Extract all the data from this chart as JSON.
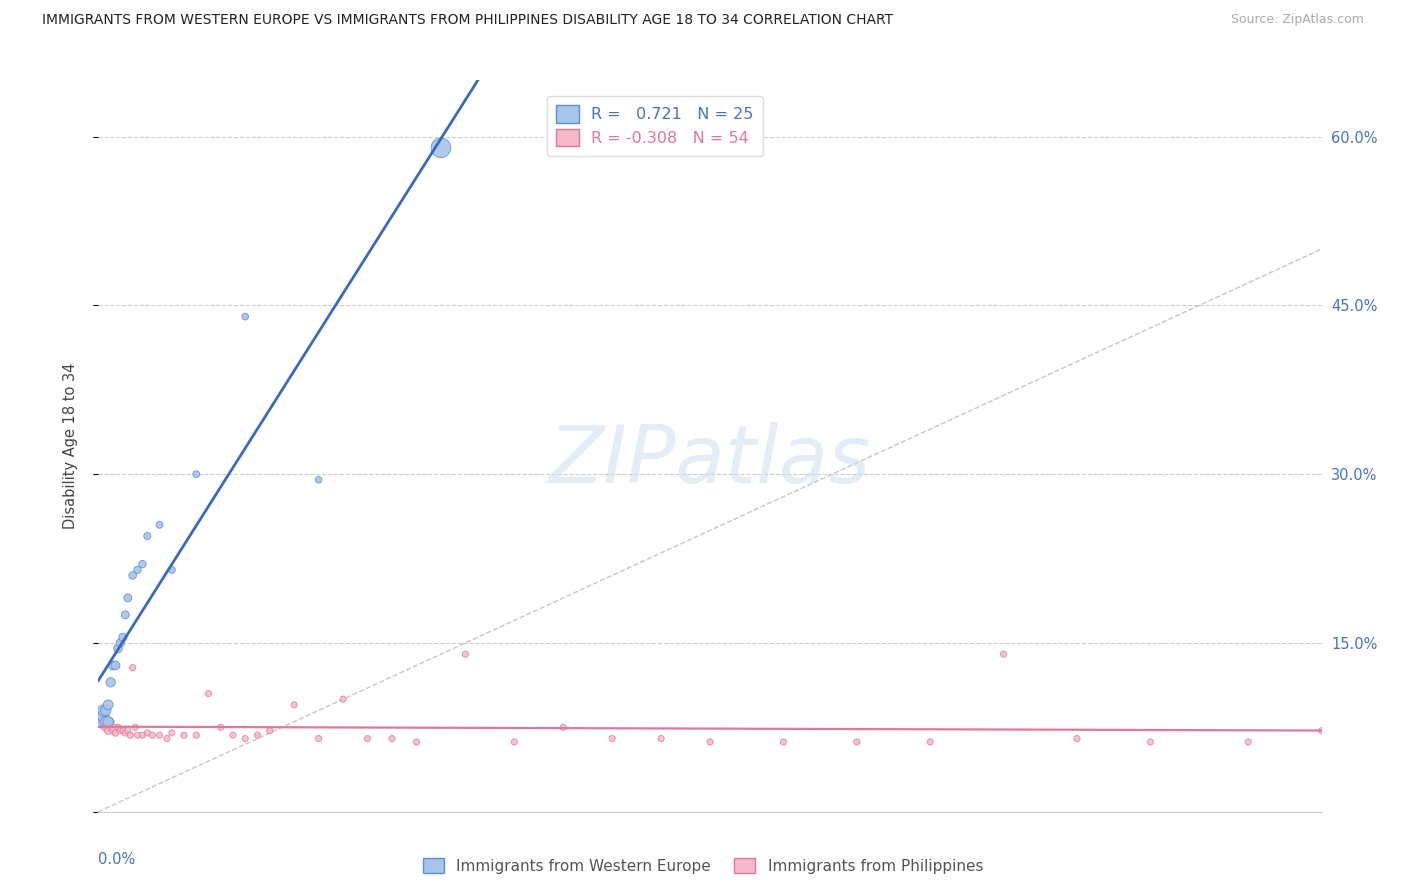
{
  "title": "IMMIGRANTS FROM WESTERN EUROPE VS IMMIGRANTS FROM PHILIPPINES DISABILITY AGE 18 TO 34 CORRELATION CHART",
  "source": "Source: ZipAtlas.com",
  "ylabel": "Disability Age 18 to 34",
  "yticks": [
    0.0,
    0.15,
    0.3,
    0.45,
    0.6
  ],
  "ytick_labels": [
    "",
    "15.0%",
    "30.0%",
    "45.0%",
    "60.0%"
  ],
  "xlim": [
    0.0,
    0.5
  ],
  "ylim": [
    0.0,
    0.65
  ],
  "r_blue": 0.721,
  "n_blue": 25,
  "r_pink": -0.308,
  "n_pink": 54,
  "color_blue_fill": "#a8c4e8",
  "color_blue_edge": "#5b8fd4",
  "color_pink_fill": "#f5b8c8",
  "color_pink_edge": "#e07898",
  "color_blue_line": "#3a6abf",
  "color_pink_line": "#e07898",
  "color_diag": "#b0b0b0",
  "watermark_text": "ZIPatlas",
  "legend_label_blue": "Immigrants from Western Europe",
  "legend_label_pink": "Immigrants from Philippines",
  "blue_x": [
    0.001,
    0.002,
    0.002,
    0.003,
    0.003,
    0.004,
    0.004,
    0.005,
    0.006,
    0.007,
    0.008,
    0.009,
    0.01,
    0.011,
    0.012,
    0.014,
    0.016,
    0.018,
    0.02,
    0.025,
    0.03,
    0.04,
    0.06,
    0.09,
    0.14
  ],
  "blue_y": [
    0.08,
    0.085,
    0.09,
    0.08,
    0.09,
    0.08,
    0.095,
    0.115,
    0.13,
    0.13,
    0.145,
    0.15,
    0.155,
    0.175,
    0.19,
    0.21,
    0.215,
    0.22,
    0.245,
    0.255,
    0.215,
    0.3,
    0.44,
    0.295,
    0.59
  ],
  "blue_sizes": [
    80,
    70,
    65,
    60,
    55,
    55,
    50,
    45,
    42,
    40,
    38,
    36,
    35,
    33,
    32,
    30,
    28,
    28,
    26,
    25,
    25,
    24,
    23,
    22,
    200
  ],
  "pink_x": [
    0.001,
    0.002,
    0.003,
    0.003,
    0.004,
    0.004,
    0.005,
    0.005,
    0.006,
    0.006,
    0.007,
    0.008,
    0.009,
    0.01,
    0.011,
    0.012,
    0.013,
    0.014,
    0.015,
    0.016,
    0.018,
    0.02,
    0.022,
    0.025,
    0.028,
    0.03,
    0.035,
    0.04,
    0.045,
    0.05,
    0.055,
    0.06,
    0.065,
    0.07,
    0.08,
    0.09,
    0.1,
    0.11,
    0.12,
    0.13,
    0.15,
    0.17,
    0.19,
    0.21,
    0.23,
    0.25,
    0.28,
    0.31,
    0.34,
    0.37,
    0.4,
    0.43,
    0.47,
    0.5
  ],
  "pink_y": [
    0.082,
    0.078,
    0.08,
    0.075,
    0.078,
    0.072,
    0.075,
    0.08,
    0.075,
    0.072,
    0.07,
    0.075,
    0.072,
    0.072,
    0.07,
    0.072,
    0.068,
    0.128,
    0.075,
    0.068,
    0.068,
    0.07,
    0.068,
    0.068,
    0.065,
    0.07,
    0.068,
    0.068,
    0.105,
    0.075,
    0.068,
    0.065,
    0.068,
    0.072,
    0.095,
    0.065,
    0.1,
    0.065,
    0.065,
    0.062,
    0.14,
    0.062,
    0.075,
    0.065,
    0.065,
    0.062,
    0.062,
    0.062,
    0.062,
    0.14,
    0.065,
    0.062,
    0.062,
    0.072
  ],
  "pink_sizes": [
    55,
    45,
    38,
    35,
    32,
    30,
    28,
    26,
    25,
    23,
    22,
    21,
    20,
    20,
    20,
    20,
    20,
    20,
    20,
    20,
    20,
    20,
    20,
    20,
    20,
    20,
    20,
    20,
    20,
    20,
    20,
    20,
    20,
    20,
    20,
    20,
    20,
    20,
    20,
    20,
    20,
    20,
    20,
    20,
    20,
    20,
    20,
    20,
    20,
    20,
    20,
    20,
    20,
    20
  ]
}
